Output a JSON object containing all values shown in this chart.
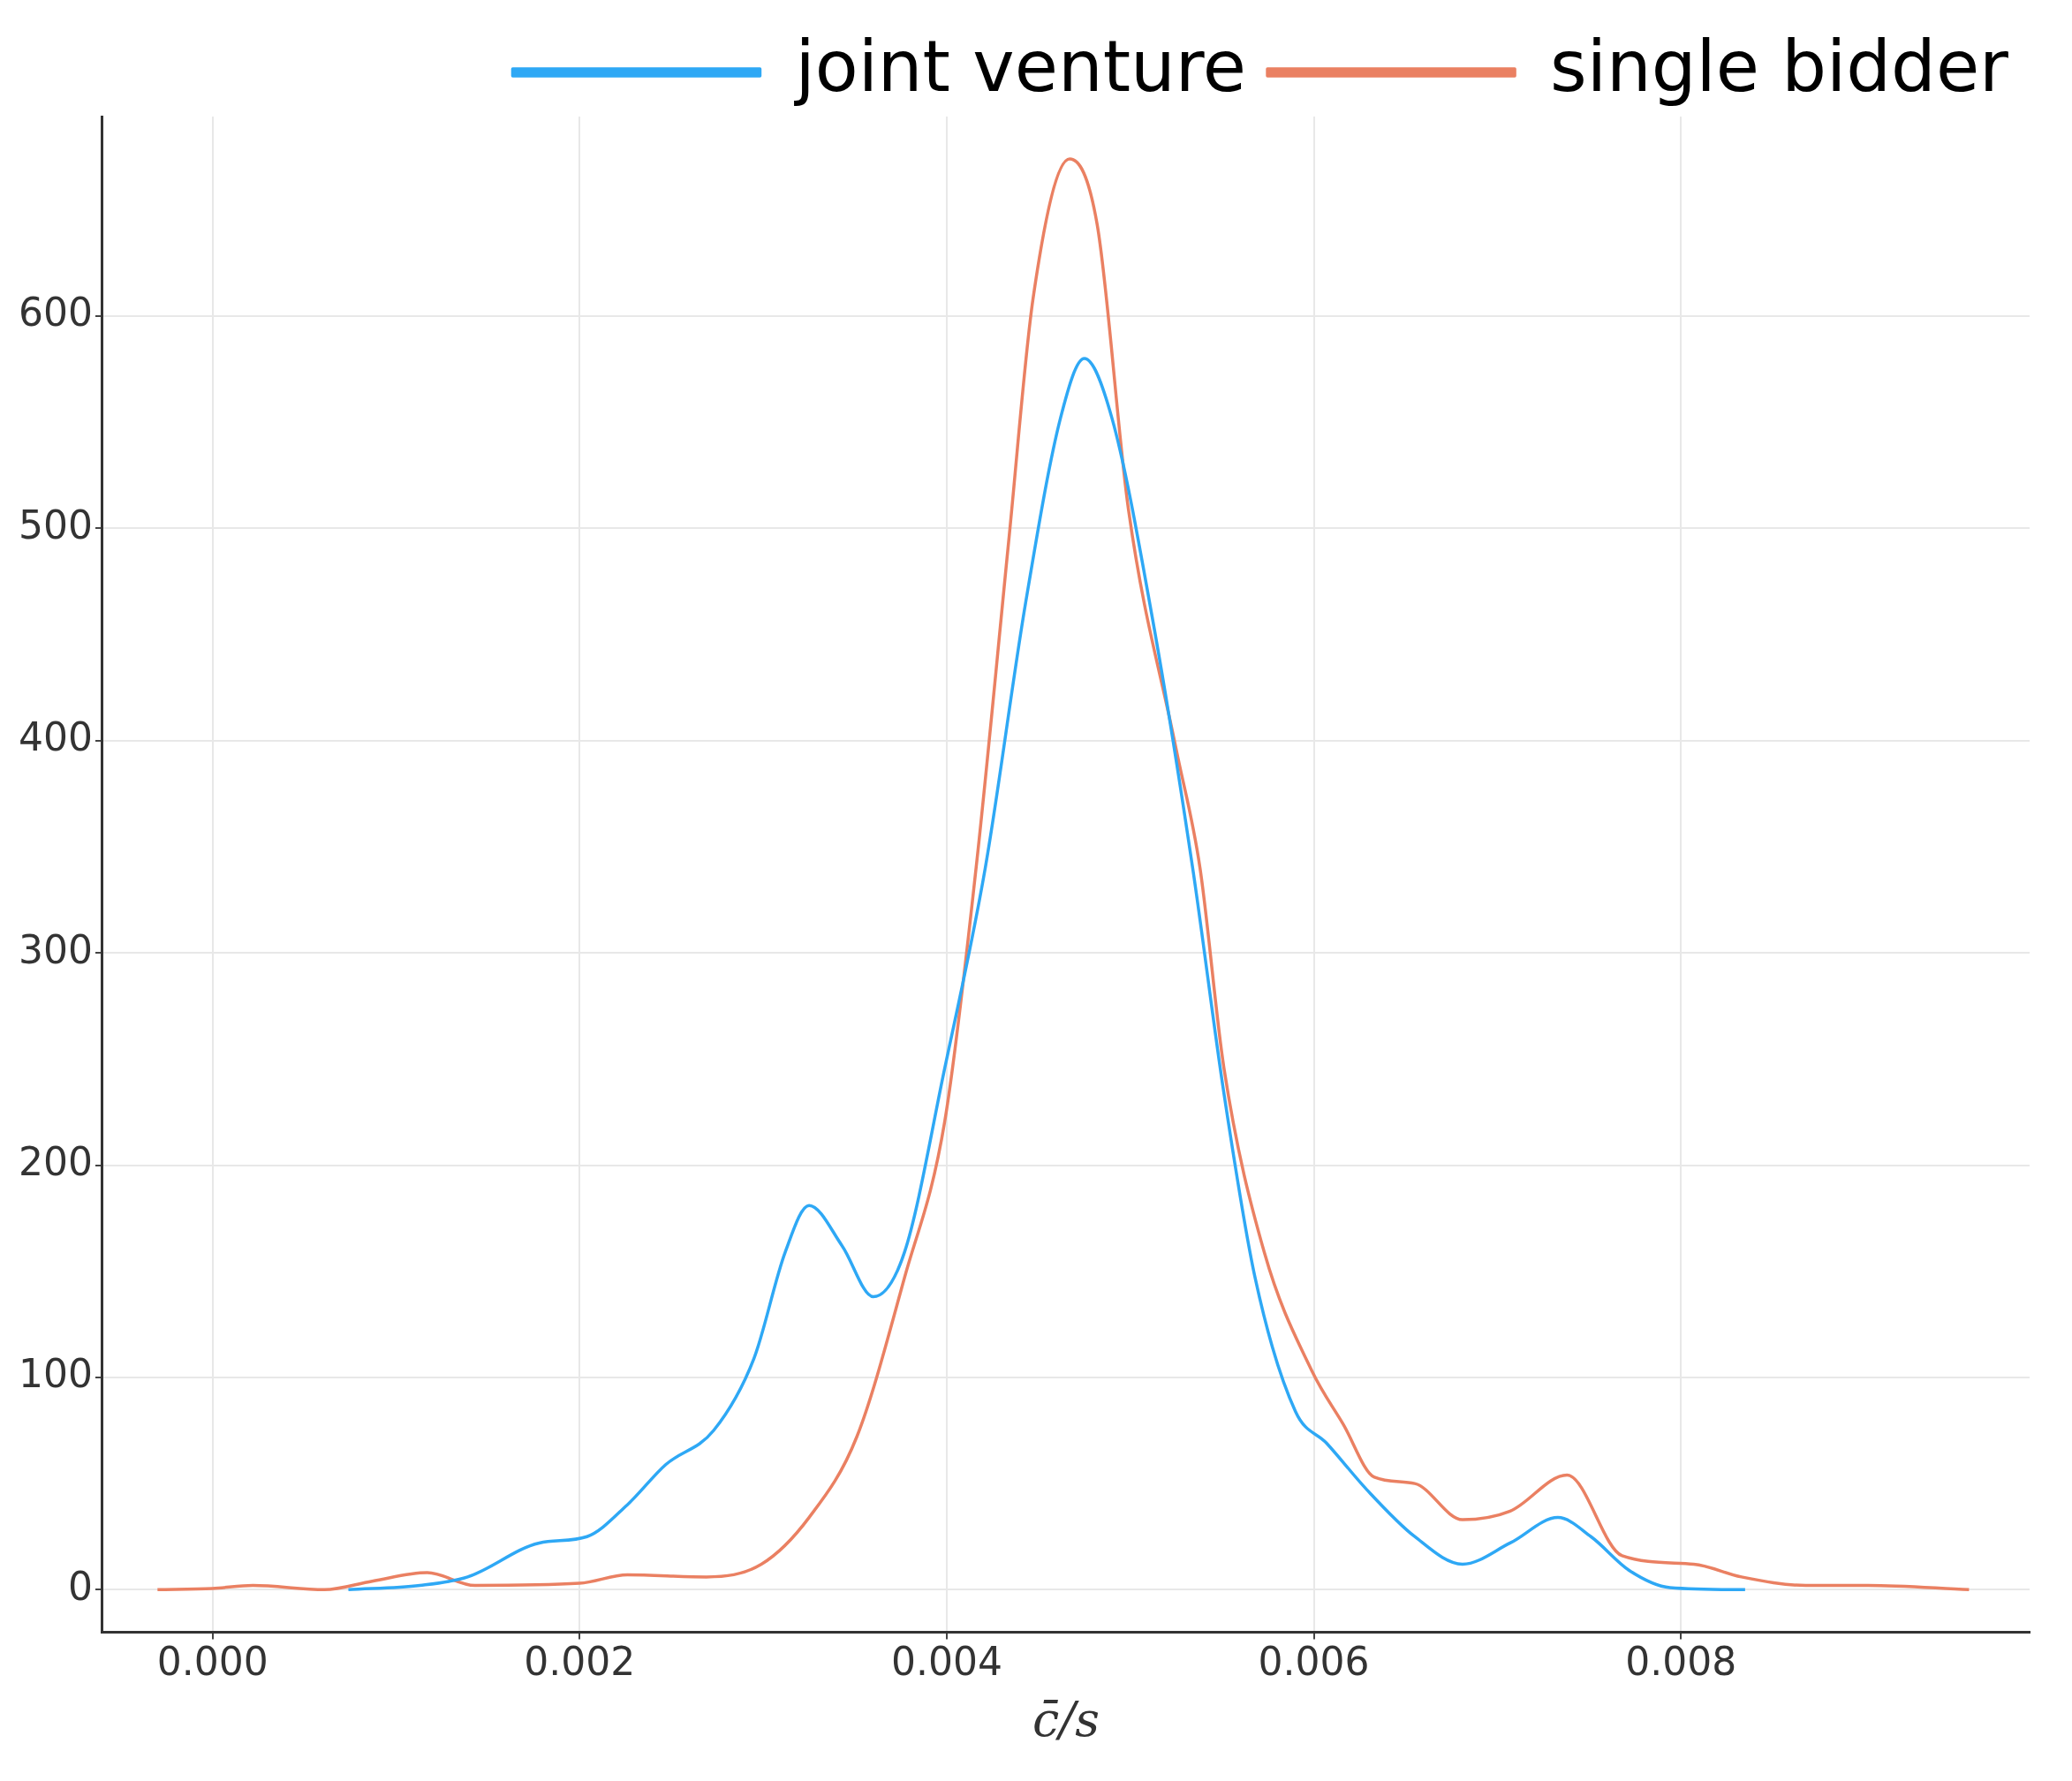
{
  "chart_data": {
    "type": "line",
    "xlabel": "c̄/s",
    "legend": "top right",
    "grid": true,
    "marker": "none",
    "line_style": "solid",
    "xlim": [
      -0.0006,
      0.0099
    ],
    "ylim": [
      -20,
      694
    ],
    "xticks": [
      {
        "value": 0,
        "label": "0.000"
      },
      0.002,
      0.004,
      0.006,
      0.008
    ],
    "yticks": [
      0,
      100,
      200,
      300,
      400,
      500,
      600
    ],
    "series": [
      {
        "name": "joint venture",
        "color": "#2ea8f5",
        "x": [
          0.00074,
          0.00113,
          0.00139,
          0.00178,
          0.00204,
          0.00226,
          0.00247,
          0.00273,
          0.00295,
          0.00312,
          0.00325,
          0.00343,
          0.0036,
          0.00377,
          0.00399,
          0.00421,
          0.00443,
          0.00462,
          0.00475,
          0.0049,
          0.00512,
          0.00534,
          0.00551,
          0.00568,
          0.0059,
          0.00607,
          0.00629,
          0.00655,
          0.00681,
          0.00707,
          0.00733,
          0.00751,
          0.00772,
          0.00794,
          0.00835
        ],
        "values": [
          0,
          2,
          6,
          22,
          25,
          40,
          59,
          75,
          109,
          159,
          181,
          162,
          138,
          159,
          246,
          340,
          465,
          552,
          580,
          552,
          458,
          340,
          234,
          147,
          84,
          69,
          47,
          25,
          12,
          22,
          34,
          25,
          9,
          1,
          0
        ]
      },
      {
        "name": "single bidder",
        "color": "#ea8062",
        "x": [
          -0.0003,
          0,
          0.00022,
          0.00061,
          0.00087,
          0.00117,
          0.00143,
          0.002,
          0.00226,
          0.00269,
          0.00299,
          0.00325,
          0.00351,
          0.00377,
          0.00399,
          0.00416,
          0.00434,
          0.00447,
          0.00467,
          0.00482,
          0.00499,
          0.00525,
          0.00538,
          0.00551,
          0.00573,
          0.00599,
          0.00616,
          0.00633,
          0.00655,
          0.00681,
          0.00707,
          0.00738,
          0.00768,
          0.00807,
          0.00833,
          0.00868,
          0.00902,
          0.00957
        ],
        "values": [
          0,
          0.6,
          2,
          0,
          4,
          8,
          2,
          3,
          7,
          6,
          12,
          34,
          72,
          147,
          221,
          340,
          496,
          608,
          674,
          643,
          509,
          396,
          340,
          246,
          159,
          103,
          78,
          53,
          50,
          33,
          37,
          54,
          16,
          12,
          6,
          2,
          2,
          0
        ]
      }
    ]
  }
}
